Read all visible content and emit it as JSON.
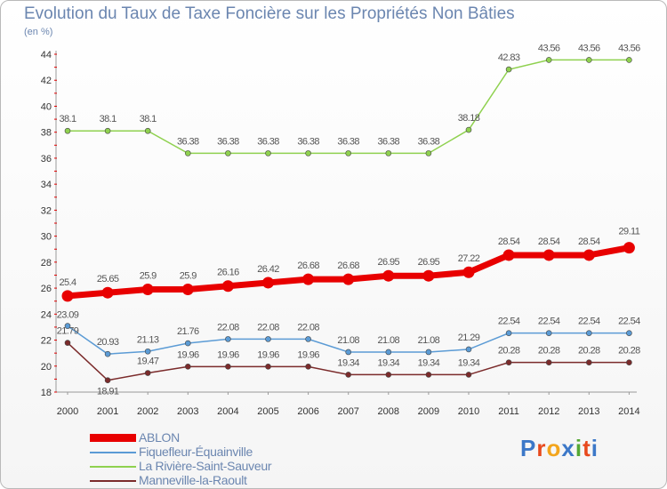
{
  "header": {
    "title": "Evolution du Taux de Taxe Foncière sur les Propriétés Non Bâties",
    "unit": "(en %)"
  },
  "logo": {
    "text": "Proxiti",
    "letters": [
      "P",
      "r",
      "o",
      "x",
      "i",
      "t",
      "i"
    ],
    "colors": [
      "#3c78c8",
      "#e8491d",
      "#f3a51c",
      "#3c78c8",
      "#55a835",
      "#e8491d",
      "#3c78c8"
    ]
  },
  "chart_data": {
    "type": "line",
    "title": "Evolution du Taux de Taxe Foncière sur les Propriétés Non Bâties",
    "ylabel": "(en %)",
    "xlabel": "",
    "x": [
      "2000",
      "2001",
      "2002",
      "2003",
      "2004",
      "2005",
      "2006",
      "2007",
      "2008",
      "2009",
      "2010",
      "2011",
      "2012",
      "2013",
      "2014"
    ],
    "ylim": [
      18,
      44
    ],
    "yticks": [
      18,
      20,
      22,
      24,
      26,
      28,
      30,
      32,
      34,
      36,
      38,
      40,
      42,
      44
    ],
    "grid": false,
    "legend": "bottom-left",
    "series": [
      {
        "name": "ABLON",
        "color": "#e80000",
        "emphasis": true,
        "values": [
          25.4,
          25.65,
          25.9,
          25.9,
          26.16,
          26.42,
          26.68,
          26.68,
          26.95,
          26.95,
          27.22,
          28.54,
          28.54,
          28.54,
          29.11
        ],
        "labels": [
          "25.4",
          "25.65",
          "25.9",
          "25.9",
          "26.16",
          "26.42",
          "26.68",
          "26.68",
          "26.95",
          "26.95",
          "27.22",
          "28.54",
          "28.54",
          "28.54",
          "29.11"
        ]
      },
      {
        "name": "Fiquefleur-Équainville",
        "color": "#5b9bd5",
        "values": [
          23.09,
          20.93,
          21.13,
          21.76,
          22.08,
          22.08,
          22.08,
          21.08,
          21.08,
          21.08,
          21.29,
          22.54,
          22.54,
          22.54,
          22.54
        ],
        "labels": [
          "23.09",
          "20.93",
          "21.13",
          "21.76",
          "22.08",
          "22.08",
          "22.08",
          "21.08",
          "21.08",
          "21.08",
          "21.29",
          "22.54",
          "22.54",
          "22.54",
          "22.54"
        ]
      },
      {
        "name": "La Rivière-Saint-Sauveur",
        "color": "#8fd14f",
        "values": [
          38.1,
          38.1,
          38.1,
          36.38,
          36.38,
          36.38,
          36.38,
          36.38,
          36.38,
          36.38,
          38.18,
          42.83,
          43.56,
          43.56,
          43.56
        ],
        "labels": [
          "38.1",
          "38.1",
          "38.1",
          "36.38",
          "36.38",
          "36.38",
          "36.38",
          "36.38",
          "36.38",
          "36.38",
          "38.18",
          "42.83",
          "43.56",
          "43.56",
          "43.56"
        ]
      },
      {
        "name": "Manneville-la-Raoult",
        "color": "#7b2b2b",
        "values": [
          21.79,
          18.91,
          19.47,
          19.96,
          19.96,
          19.96,
          19.96,
          19.34,
          19.34,
          19.34,
          19.34,
          20.28,
          20.28,
          20.28,
          20.28
        ],
        "labels": [
          "21.79",
          "18.91",
          "19.47",
          "19.96",
          "19.96",
          "19.96",
          "19.96",
          "19.34",
          "19.34",
          "19.34",
          "19.34",
          "20.28",
          "20.28",
          "20.28",
          "20.28"
        ]
      }
    ]
  }
}
